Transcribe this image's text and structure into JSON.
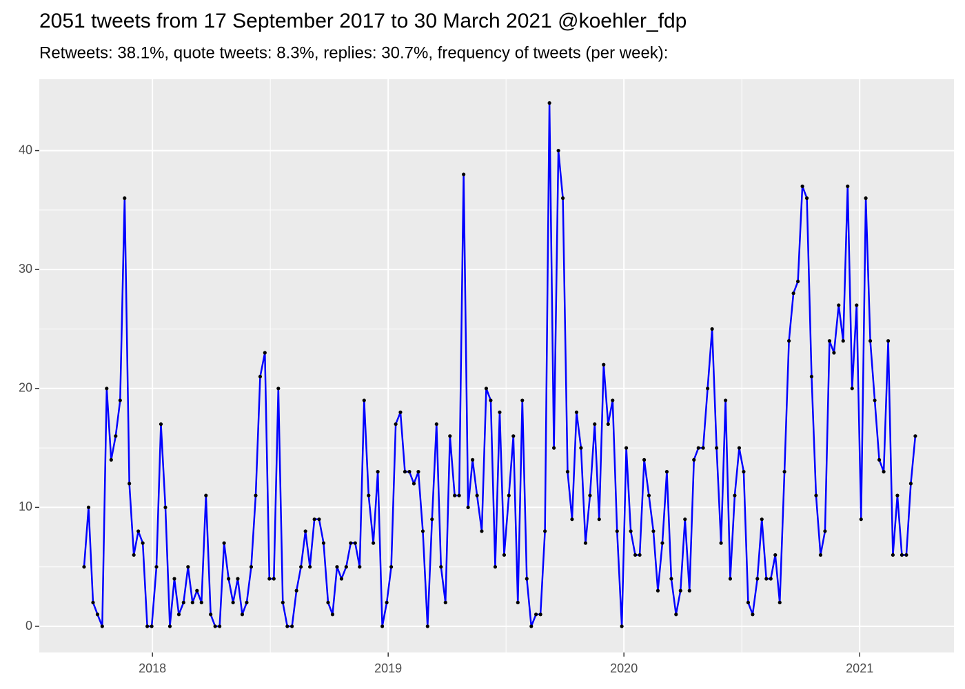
{
  "chart_data": {
    "type": "line",
    "title": "2051 tweets from 17 September 2017 to 30 March 2021 @koehler_fdp",
    "subtitle": "Retweets: 38.1%, quote tweets: 8.3%, replies: 30.7%, frequency of tweets (per week):",
    "x": [
      2017.71,
      2017.729,
      2017.748,
      2017.767,
      2017.787,
      2017.806,
      2017.825,
      2017.844,
      2017.863,
      2017.882,
      2017.902,
      2017.921,
      2017.94,
      2017.959,
      2017.978,
      2017.997,
      2018.017,
      2018.036,
      2018.055,
      2018.074,
      2018.093,
      2018.112,
      2018.132,
      2018.151,
      2018.17,
      2018.189,
      2018.208,
      2018.227,
      2018.247,
      2018.266,
      2018.285,
      2018.304,
      2018.323,
      2018.342,
      2018.362,
      2018.381,
      2018.4,
      2018.419,
      2018.438,
      2018.457,
      2018.477,
      2018.496,
      2018.515,
      2018.534,
      2018.553,
      2018.572,
      2018.592,
      2018.611,
      2018.63,
      2018.649,
      2018.668,
      2018.687,
      2018.707,
      2018.726,
      2018.745,
      2018.764,
      2018.783,
      2018.802,
      2018.822,
      2018.841,
      2018.86,
      2018.879,
      2018.898,
      2018.917,
      2018.937,
      2018.956,
      2018.975,
      2018.994,
      2019.013,
      2019.032,
      2019.052,
      2019.071,
      2019.09,
      2019.109,
      2019.128,
      2019.147,
      2019.167,
      2019.186,
      2019.205,
      2019.224,
      2019.243,
      2019.262,
      2019.282,
      2019.301,
      2019.32,
      2019.339,
      2019.358,
      2019.377,
      2019.397,
      2019.416,
      2019.435,
      2019.454,
      2019.473,
      2019.492,
      2019.512,
      2019.531,
      2019.55,
      2019.569,
      2019.588,
      2019.607,
      2019.627,
      2019.646,
      2019.665,
      2019.684,
      2019.703,
      2019.722,
      2019.741,
      2019.761,
      2019.78,
      2019.799,
      2019.818,
      2019.837,
      2019.856,
      2019.876,
      2019.895,
      2019.914,
      2019.933,
      2019.952,
      2019.971,
      2019.991,
      2020.01,
      2020.029,
      2020.048,
      2020.067,
      2020.086,
      2020.106,
      2020.125,
      2020.144,
      2020.163,
      2020.182,
      2020.201,
      2020.221,
      2020.24,
      2020.259,
      2020.278,
      2020.297,
      2020.316,
      2020.336,
      2020.355,
      2020.374,
      2020.393,
      2020.412,
      2020.431,
      2020.451,
      2020.47,
      2020.489,
      2020.508,
      2020.527,
      2020.546,
      2020.566,
      2020.585,
      2020.604,
      2020.623,
      2020.642,
      2020.661,
      2020.681,
      2020.7,
      2020.719,
      2020.738,
      2020.757,
      2020.776,
      2020.796,
      2020.815,
      2020.834,
      2020.853,
      2020.872,
      2020.891,
      2020.911,
      2020.93,
      2020.949,
      2020.968,
      2020.987,
      2021.006,
      2021.026,
      2021.045,
      2021.064,
      2021.083,
      2021.102,
      2021.121,
      2021.141,
      2021.16,
      2021.179,
      2021.198,
      2021.217,
      2021.236
    ],
    "values": [
      5,
      10,
      2,
      1,
      0,
      20,
      14,
      16,
      19,
      36,
      12,
      6,
      8,
      7,
      0,
      0,
      5,
      17,
      10,
      0,
      4,
      1,
      2,
      5,
      2,
      3,
      2,
      11,
      1,
      0,
      0,
      7,
      4,
      2,
      4,
      1,
      2,
      5,
      11,
      21,
      23,
      4,
      4,
      20,
      2,
      0,
      0,
      3,
      5,
      8,
      5,
      9,
      9,
      7,
      2,
      1,
      5,
      4,
      5,
      7,
      7,
      5,
      19,
      11,
      7,
      13,
      0,
      2,
      5,
      17,
      18,
      13,
      13,
      12,
      13,
      8,
      0,
      9,
      17,
      5,
      2,
      16,
      11,
      11,
      38,
      10,
      14,
      11,
      8,
      20,
      19,
      5,
      18,
      6,
      11,
      16,
      2,
      19,
      4,
      0,
      1,
      1,
      8,
      44,
      15,
      40,
      36,
      13,
      9,
      18,
      15,
      7,
      11,
      17,
      9,
      22,
      17,
      19,
      8,
      0,
      15,
      8,
      6,
      6,
      14,
      11,
      8,
      3,
      7,
      13,
      4,
      1,
      3,
      9,
      3,
      14,
      15,
      15,
      20,
      25,
      15,
      7,
      19,
      4,
      11,
      15,
      13,
      2,
      1,
      4,
      9,
      4,
      4,
      6,
      2,
      13,
      24,
      28,
      29,
      37,
      36,
      21,
      11,
      6,
      8,
      24,
      23,
      27,
      24,
      37,
      20,
      27,
      9,
      36,
      24,
      19,
      14,
      13,
      24,
      6,
      11,
      6,
      6,
      12,
      16
    ],
    "color": "#0000ff",
    "marker_color": "#000000",
    "xlim": [
      2017.52,
      2021.4
    ],
    "xticks": [
      2018,
      2019,
      2020,
      2021
    ],
    "ylim": [
      -2.2,
      46.0
    ],
    "yticks": [
      0,
      10,
      20,
      30,
      40
    ],
    "grid": true,
    "panel_color": "#ebebeb"
  }
}
